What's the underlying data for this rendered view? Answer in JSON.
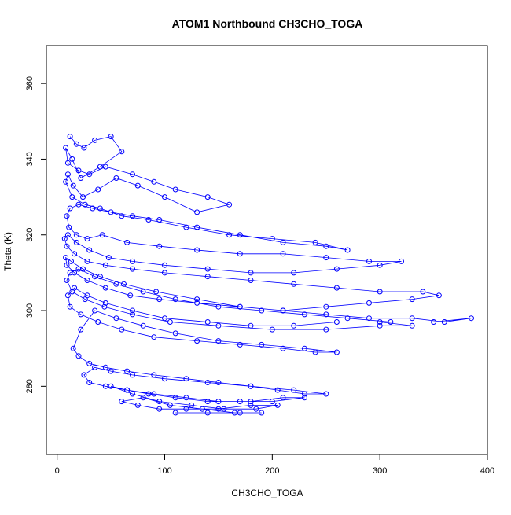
{
  "chart_data": {
    "type": "scatter",
    "title": "ATOM1 Northbound CH3CHO_TOGA",
    "xlabel": "CH3CHO_TOGA",
    "ylabel": "Theta (K)",
    "xlim": [
      -10,
      400
    ],
    "ylim": [
      262,
      370
    ],
    "x_ticks": [
      0,
      100,
      200,
      300,
      400
    ],
    "y_ticks": [
      280,
      300,
      320,
      340,
      360
    ],
    "series_color": "#0000FF",
    "style": "points-and-lines",
    "grid": false,
    "legend": "none",
    "series": [
      {
        "x": [
          12,
          18,
          25,
          35,
          50,
          60,
          40,
          22,
          14,
          8,
          10,
          20,
          30,
          45,
          70,
          90,
          110,
          140,
          160,
          130,
          100,
          75,
          55,
          38,
          24,
          15,
          10,
          8,
          14,
          26,
          40,
          60,
          85,
          120,
          160,
          200,
          240,
          270,
          250,
          210,
          170,
          130,
          95,
          70,
          50,
          33,
          20,
          12,
          9,
          11,
          18,
          28,
          42,
          65,
          95,
          130,
          170,
          210,
          250,
          290,
          320,
          300,
          260,
          220,
          180,
          140,
          100,
          70,
          48,
          30,
          18,
          10,
          7,
          9,
          16,
          28,
          45,
          70,
          100,
          140,
          180,
          220,
          260,
          300,
          340,
          355,
          330,
          290,
          250,
          210,
          170,
          130,
          95,
          68,
          45,
          28,
          16,
          9,
          8,
          13,
          24,
          40,
          62,
          92,
          130,
          170,
          210,
          250,
          290,
          330,
          360,
          385,
          350,
          310,
          270,
          230,
          190,
          150,
          110,
          80,
          55,
          35,
          20,
          12,
          9,
          14,
          26,
          44,
          70,
          105,
          150,
          200,
          250,
          300,
          330,
          300,
          260,
          220,
          180,
          140,
          100,
          70,
          45,
          28,
          16,
          10,
          12,
          22,
          38,
          60,
          90,
          130,
          170,
          210,
          240,
          260,
          230,
          190,
          150,
          110,
          80,
          55,
          35,
          22,
          15,
          20,
          30,
          45,
          65,
          90,
          120,
          150,
          180,
          205,
          230,
          250,
          220,
          180,
          140,
          100,
          70,
          50,
          35,
          25,
          30,
          45,
          65,
          90,
          120,
          150,
          180,
          210,
          230,
          200,
          170,
          140,
          110,
          85,
          65,
          50,
          70,
          95,
          125,
          155,
          185,
          205,
          180,
          150,
          120,
          95,
          75,
          60,
          80,
          105,
          135,
          165,
          190,
          170,
          140,
          110
        ],
        "y": [
          346,
          344,
          343,
          345,
          346,
          342,
          338,
          335,
          340,
          343,
          339,
          337,
          336,
          338,
          336,
          334,
          332,
          330,
          328,
          326,
          330,
          333,
          335,
          332,
          330,
          333,
          336,
          334,
          330,
          328,
          327,
          325,
          324,
          322,
          320,
          319,
          318,
          316,
          317,
          318,
          320,
          322,
          324,
          325,
          326,
          327,
          328,
          327,
          325,
          322,
          320,
          319,
          320,
          318,
          317,
          316,
          315,
          315,
          314,
          313,
          313,
          312,
          311,
          310,
          310,
          311,
          312,
          313,
          314,
          316,
          318,
          320,
          319,
          317,
          315,
          313,
          312,
          311,
          310,
          309,
          308,
          307,
          306,
          305,
          305,
          304,
          303,
          302,
          301,
          300,
          301,
          302,
          303,
          304,
          306,
          308,
          310,
          312,
          314,
          313,
          311,
          309,
          307,
          305,
          303,
          301,
          300,
          299,
          298,
          298,
          297,
          298,
          297,
          297,
          298,
          299,
          300,
          301,
          303,
          305,
          307,
          309,
          311,
          310,
          308,
          305,
          303,
          301,
          299,
          297,
          296,
          295,
          295,
          296,
          296,
          297,
          297,
          296,
          296,
          297,
          298,
          300,
          302,
          304,
          306,
          304,
          301,
          299,
          297,
          295,
          293,
          292,
          291,
          290,
          289,
          289,
          290,
          291,
          292,
          294,
          296,
          298,
          300,
          295,
          290,
          288,
          286,
          285,
          284,
          283,
          282,
          281,
          280,
          279,
          278,
          278,
          279,
          280,
          281,
          282,
          283,
          284,
          285,
          283,
          281,
          280,
          279,
          278,
          277,
          276,
          276,
          277,
          277,
          276,
          276,
          276,
          277,
          278,
          279,
          280,
          278,
          276,
          275,
          274,
          274,
          275,
          275,
          274,
          274,
          274,
          275,
          276,
          277,
          275,
          274,
          273,
          273,
          273,
          273,
          273
        ]
      }
    ]
  }
}
